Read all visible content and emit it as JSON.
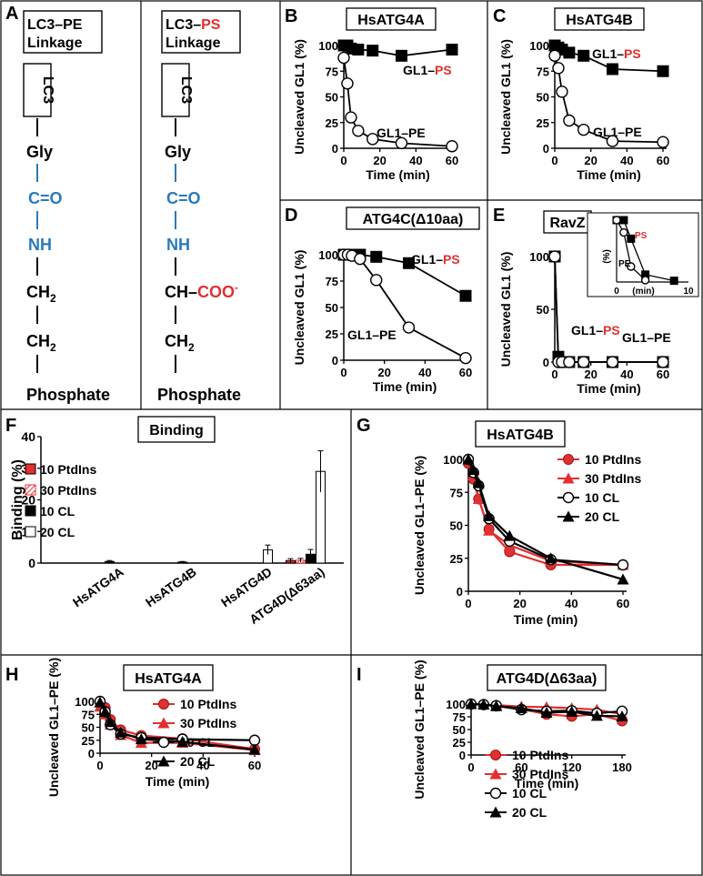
{
  "panel_a": {
    "letter": "A",
    "left": {
      "box_line1": "LC3–PE",
      "box_line2": "Linkage",
      "lc3": "LC3",
      "gly": "Gly",
      "co": "C=O",
      "nh": "NH",
      "ch2a": "CH",
      "ch2b": "CH",
      "sub2": "2",
      "phosphate": "Phosphate"
    },
    "right": {
      "box_line1_black": "LC3–",
      "box_line1_red": "PS",
      "box_line2": "Linkage",
      "lc3": "LC3",
      "gly": "Gly",
      "co": "C=O",
      "nh": "NH",
      "ch_coo": "CH–",
      "coo": "COO",
      "coo_sup": "-",
      "ch2": "CH",
      "sub2": "2",
      "phosphate": "Phosphate"
    }
  },
  "colors": {
    "red": "#e03030",
    "blue": "#2a7ab8",
    "black": "#000000"
  },
  "chart_data": [
    {
      "id": "B",
      "type": "line",
      "title": "HsATG4A",
      "ylabel": "Uncleaved GL1 (%)",
      "xlabel": "Time (min)",
      "xlim": [
        0,
        60
      ],
      "ylim": [
        0,
        100
      ],
      "xticks": [
        0,
        20,
        40,
        60
      ],
      "yticks": [
        0,
        25,
        50,
        75,
        100
      ],
      "series": [
        {
          "name": "GL1–PS",
          "marker": "square-filled",
          "x": [
            0,
            2,
            4,
            8,
            16,
            32,
            60
          ],
          "y": [
            100,
            100,
            97,
            96,
            95,
            90,
            96
          ]
        },
        {
          "name": "GL1–PE",
          "marker": "circle-open",
          "x": [
            0,
            2,
            4,
            8,
            16,
            32,
            60
          ],
          "y": [
            88,
            63,
            30,
            17,
            9,
            5,
            2
          ]
        }
      ],
      "labels": [
        {
          "text_black": "GL1–",
          "text_red": "PS"
        },
        {
          "text_black": "GL1–PE"
        }
      ]
    },
    {
      "id": "C",
      "type": "line",
      "title": "HsATG4B",
      "ylabel": "Uncleaved GL1 (%)",
      "xlabel": "Time (min)",
      "xlim": [
        0,
        60
      ],
      "ylim": [
        0,
        100
      ],
      "xticks": [
        0,
        20,
        40,
        60
      ],
      "yticks": [
        0,
        25,
        50,
        75,
        100
      ],
      "series": [
        {
          "name": "GL1–PS",
          "marker": "square-filled",
          "x": [
            0,
            2,
            4,
            8,
            16,
            32,
            60
          ],
          "y": [
            100,
            98,
            96,
            93,
            90,
            77,
            75
          ]
        },
        {
          "name": "GL1–PE",
          "marker": "circle-open",
          "x": [
            0,
            2,
            4,
            8,
            16,
            32,
            60
          ],
          "y": [
            90,
            78,
            55,
            27,
            18,
            7,
            6
          ]
        }
      ],
      "labels": [
        {
          "text_black": "GL1–",
          "text_red": "PS"
        },
        {
          "text_black": "GL1–PE"
        }
      ]
    },
    {
      "id": "D",
      "type": "line",
      "title": "ATG4C(Δ10aa)",
      "ylabel": "Uncleaved GL1 (%)",
      "xlabel": "Time (min)",
      "xlim": [
        0,
        60
      ],
      "ylim": [
        0,
        100
      ],
      "xticks": [
        0,
        20,
        40,
        60
      ],
      "yticks": [
        0,
        25,
        50,
        75,
        100
      ],
      "series": [
        {
          "name": "GL1–PS",
          "marker": "square-filled",
          "x": [
            0,
            2,
            4,
            8,
            16,
            32,
            60
          ],
          "y": [
            100,
            100,
            100,
            100,
            98,
            92,
            61
          ]
        },
        {
          "name": "GL1–PE",
          "marker": "circle-open",
          "x": [
            0,
            2,
            4,
            8,
            16,
            32,
            60
          ],
          "y": [
            100,
            100,
            99,
            96,
            76,
            31,
            2
          ]
        }
      ],
      "labels": [
        {
          "text_black": "GL1–",
          "text_red": "PS"
        },
        {
          "text_black": "GL1–PE"
        }
      ]
    },
    {
      "id": "E",
      "type": "line",
      "title": "RavZ",
      "ylabel": "Uncleaved GL1 (%)",
      "xlabel": "Time (min)",
      "xlim": [
        0,
        60
      ],
      "ylim": [
        0,
        100
      ],
      "xticks": [
        0,
        20,
        40,
        60
      ],
      "yticks": [
        0,
        50,
        100
      ],
      "series": [
        {
          "name": "GL1–PS",
          "marker": "square-filled",
          "x": [
            0,
            2,
            4,
            8,
            16,
            32,
            60
          ],
          "y": [
            100,
            5,
            0,
            0,
            0,
            0,
            0
          ]
        },
        {
          "name": "GL1–PE",
          "marker": "circle-open",
          "x": [
            0,
            2,
            4,
            8,
            16,
            32,
            60
          ],
          "y": [
            100,
            0,
            0,
            0,
            0,
            0,
            0
          ]
        }
      ],
      "labels": [
        {
          "text_black": "GL1–",
          "text_red": "PS"
        },
        {
          "text_black": "GL1–PE"
        }
      ],
      "inset": {
        "ylabel": "(%)",
        "xlabel": "(min)",
        "xlim": [
          0,
          10
        ],
        "ylim": [
          0,
          100
        ],
        "xticks": [
          0,
          10
        ],
        "series": [
          {
            "name": "PS",
            "marker": "square-filled",
            "x": [
              0,
              1,
              2,
              4,
              8
            ],
            "y": [
              100,
              100,
              70,
              12,
              2
            ]
          },
          {
            "name": "PE",
            "marker": "circle-open",
            "x": [
              0,
              1,
              2,
              4
            ],
            "y": [
              100,
              80,
              25,
              3
            ]
          }
        ],
        "labels": {
          "ps": "PS",
          "pe": "PE"
        }
      }
    },
    {
      "id": "F",
      "type": "bar",
      "title": "Binding",
      "ylabel": "Binding (%)",
      "ylim": [
        0,
        40
      ],
      "yticks": [
        0,
        10,
        20,
        30,
        40
      ],
      "categories": [
        "HsATG4A",
        "HsATG4B",
        "HsATG4D",
        "ATG4D(Δ63aa)"
      ],
      "series": [
        {
          "name": "10 PtdIns",
          "values": [
            0,
            0,
            0,
            0.8
          ],
          "err": [
            0,
            0,
            0,
            0.6
          ]
        },
        {
          "name": "30 PtdIns",
          "values": [
            0,
            0,
            0,
            0.9
          ],
          "err": [
            0,
            0,
            0,
            0.6
          ]
        },
        {
          "name": "10 CL",
          "values": [
            0.5,
            0.3,
            0,
            2.8
          ],
          "err": [
            0.3,
            0.2,
            0,
            1.5
          ]
        },
        {
          "name": "20 CL",
          "values": [
            0,
            0,
            4.2,
            29
          ],
          "err": [
            0,
            0,
            1.5,
            6.5
          ]
        }
      ]
    },
    {
      "id": "G",
      "type": "line",
      "title": "HsATG4B",
      "ylabel": "Uncleaved GL1–PE (%)",
      "xlabel": "Time (min)",
      "xlim": [
        0,
        60
      ],
      "ylim": [
        0,
        100
      ],
      "xticks": [
        0,
        20,
        40,
        60
      ],
      "yticks": [
        0,
        25,
        50,
        75,
        100
      ],
      "series": [
        {
          "name": "10 PtdIns",
          "x": [
            0,
            2,
            4,
            8,
            16,
            32,
            60
          ],
          "y": [
            97,
            85,
            70,
            47,
            30,
            20,
            20
          ]
        },
        {
          "name": "30 PtdIns",
          "x": [
            0,
            2,
            4,
            8,
            16,
            32,
            60
          ],
          "y": [
            100,
            88,
            70,
            46,
            35,
            23,
            20
          ]
        },
        {
          "name": "10 CL",
          "x": [
            0,
            2,
            4,
            8,
            16,
            32,
            60
          ],
          "y": [
            100,
            90,
            80,
            55,
            38,
            24,
            20
          ]
        },
        {
          "name": "20 CL",
          "x": [
            0,
            2,
            4,
            8,
            16,
            32,
            60
          ],
          "y": [
            100,
            92,
            82,
            57,
            42,
            25,
            9
          ]
        }
      ]
    },
    {
      "id": "H",
      "type": "line",
      "title": "HsATG4A",
      "ylabel": "Uncleaved GL1–PE (%)",
      "xlabel": "Time (min)",
      "xlim": [
        0,
        60
      ],
      "ylim": [
        0,
        100
      ],
      "xticks": [
        0,
        20,
        40,
        60
      ],
      "yticks": [
        0,
        25,
        50,
        75,
        100
      ],
      "series": [
        {
          "name": "10 PtdIns",
          "x": [
            0,
            2,
            4,
            8,
            16,
            32,
            60
          ],
          "y": [
            98,
            88,
            65,
            45,
            34,
            28,
            8
          ]
        },
        {
          "name": "30 PtdIns",
          "x": [
            0,
            2,
            4,
            8,
            16,
            32,
            60
          ],
          "y": [
            90,
            75,
            55,
            35,
            20,
            20,
            6
          ]
        },
        {
          "name": "10 CL",
          "x": [
            0,
            2,
            4,
            8,
            16,
            32,
            60
          ],
          "y": [
            100,
            80,
            55,
            37,
            30,
            27,
            25
          ]
        },
        {
          "name": "20 CL",
          "x": [
            0,
            2,
            4,
            8,
            16,
            32,
            60
          ],
          "y": [
            98,
            80,
            60,
            40,
            27,
            22,
            7
          ]
        }
      ]
    },
    {
      "id": "I",
      "type": "line",
      "title": "ATG4D(Δ63aa)",
      "ylabel": "Uncleaved GL1–PE (%)",
      "xlabel": "Time (min)",
      "xlim": [
        0,
        180
      ],
      "ylim": [
        0,
        100
      ],
      "xticks": [
        0,
        60,
        120,
        180
      ],
      "yticks": [
        0,
        25,
        50,
        75,
        100
      ],
      "series": [
        {
          "name": "10 PtdIns",
          "x": [
            0,
            15,
            30,
            60,
            90,
            120,
            150,
            180
          ],
          "y": [
            100,
            99,
            96,
            90,
            80,
            76,
            80,
            67
          ]
        },
        {
          "name": "30 PtdIns",
          "x": [
            0,
            15,
            30,
            60,
            90,
            120,
            150,
            180
          ],
          "y": [
            100,
            99,
            98,
            95,
            94,
            92,
            89,
            80
          ]
        },
        {
          "name": "10 CL",
          "x": [
            0,
            15,
            30,
            60,
            90,
            120,
            150,
            180
          ],
          "y": [
            100,
            99,
            97,
            89,
            86,
            87,
            82,
            86
          ]
        },
        {
          "name": "20 CL",
          "x": [
            0,
            15,
            30,
            60,
            90,
            120,
            150,
            180
          ],
          "y": [
            100,
            99,
            96,
            92,
            83,
            85,
            77,
            76
          ]
        }
      ]
    }
  ],
  "legend_lipids": [
    "10 PtdIns",
    "30 PtdIns",
    "10 CL",
    "20 CL"
  ]
}
